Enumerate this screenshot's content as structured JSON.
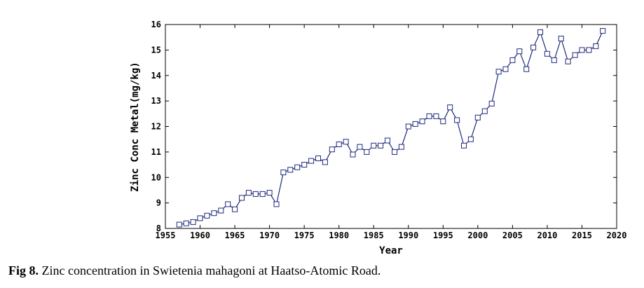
{
  "chart_data": {
    "type": "line",
    "xlabel": "Year",
    "ylabel": "Zinc Conc Metal(mg/kg)",
    "xlim": [
      1955,
      2020
    ],
    "ylim": [
      8,
      16
    ],
    "xticks": [
      1955,
      1960,
      1965,
      1970,
      1975,
      1980,
      1985,
      1990,
      1995,
      2000,
      2005,
      2010,
      2015,
      2020
    ],
    "yticks": [
      8,
      9,
      10,
      11,
      12,
      13,
      14,
      15,
      16
    ],
    "grid": false,
    "marker": "square",
    "line_color": "#1f2a7a",
    "series": [
      {
        "x": [
          1957,
          1958,
          1959,
          1960,
          1961,
          1962,
          1963,
          1964,
          1965,
          1966,
          1967,
          1968,
          1969,
          1970,
          1971,
          1972,
          1973,
          1974,
          1975,
          1976,
          1977,
          1978,
          1979,
          1980,
          1981,
          1982,
          1983,
          1984,
          1985,
          1986,
          1987,
          1988,
          1989,
          1990,
          1991,
          1992,
          1993,
          1994,
          1995,
          1996,
          1997,
          1998,
          1999,
          2000,
          2001,
          2002,
          2003,
          2004,
          2005,
          2006,
          2007,
          2008,
          2009,
          2010,
          2011,
          2012,
          2013,
          2014,
          2015,
          2016,
          2017,
          2018
        ],
        "y": [
          8.15,
          8.2,
          8.25,
          8.4,
          8.5,
          8.6,
          8.7,
          8.95,
          8.75,
          9.2,
          9.4,
          9.35,
          9.35,
          9.4,
          8.95,
          10.2,
          10.3,
          10.4,
          10.5,
          10.65,
          10.75,
          10.6,
          11.1,
          11.3,
          11.4,
          10.9,
          11.2,
          11.0,
          11.25,
          11.25,
          11.45,
          11.0,
          11.2,
          12.0,
          12.1,
          12.2,
          12.4,
          12.4,
          12.2,
          12.75,
          12.25,
          11.25,
          11.5,
          12.35,
          12.6,
          12.9,
          14.15,
          14.25,
          14.6,
          14.95,
          14.25,
          15.1,
          15.7,
          14.85,
          14.6,
          15.45,
          14.55,
          14.8,
          15.0,
          15.0,
          15.15,
          15.75
        ]
      }
    ]
  },
  "caption": {
    "label": "Fig 8.",
    "text": " Zinc concentration in Swietenia mahagoni at Haatso-Atomic Road."
  }
}
